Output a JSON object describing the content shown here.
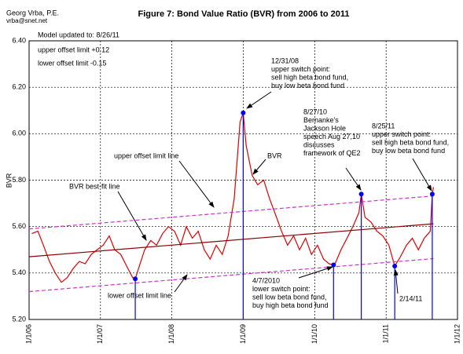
{
  "header": {
    "author": "Georg Vrba, P.E.",
    "email": "vrba@snet.net"
  },
  "chart_data": {
    "type": "line",
    "title": "Figure 7: Bond Value Ratio (BVR) from 2006 to 2011",
    "y_label": "BVR",
    "notes": [
      "Model updated to:   8/26/11",
      "upper offset limit +0.12",
      "lower offset limit  -0.15"
    ],
    "xlim": [
      "2006-01-01",
      "2012-01-01"
    ],
    "xticks": [
      {
        "value": "2006-01-01",
        "label": "1/1/06"
      },
      {
        "value": "2007-01-01",
        "label": "1/1/07"
      },
      {
        "value": "2008-01-01",
        "label": "1/1/08"
      },
      {
        "value": "2009-01-01",
        "label": "1/1/09"
      },
      {
        "value": "2010-01-01",
        "label": "1/1/10"
      },
      {
        "value": "2011-01-01",
        "label": "1/1/11"
      },
      {
        "value": "2012-01-01",
        "label": "1/1/12"
      }
    ],
    "ylim": [
      5.2,
      6.4
    ],
    "yticks": [
      {
        "value": 5.2,
        "label": "5.20"
      },
      {
        "value": 5.4,
        "label": "5.40"
      },
      {
        "value": 5.6,
        "label": "5.60"
      },
      {
        "value": 5.8,
        "label": "5.80"
      },
      {
        "value": 6.0,
        "label": "6.00"
      },
      {
        "value": 6.2,
        "label": "6.20"
      },
      {
        "value": 6.4,
        "label": "6.40"
      }
    ],
    "grid": true,
    "series": [
      {
        "name": "BVR",
        "color": "#e00000",
        "dash": false,
        "x": [
          "2006-01-15",
          "2006-02-15",
          "2006-03-15",
          "2006-04-15",
          "2006-05-15",
          "2006-06-15",
          "2006-07-15",
          "2006-08-15",
          "2006-09-15",
          "2006-10-15",
          "2006-11-15",
          "2006-12-15",
          "2007-01-15",
          "2007-02-15",
          "2007-03-15",
          "2007-04-15",
          "2007-05-15",
          "2007-06-15",
          "2007-06-28",
          "2007-07-15",
          "2007-08-15",
          "2007-09-15",
          "2007-10-15",
          "2007-11-15",
          "2007-12-15",
          "2008-01-15",
          "2008-02-15",
          "2008-03-15",
          "2008-04-15",
          "2008-05-15",
          "2008-06-15",
          "2008-07-15",
          "2008-08-15",
          "2008-09-15",
          "2008-10-15",
          "2008-11-15",
          "2008-12-15",
          "2008-12-31",
          "2009-01-15",
          "2009-02-15",
          "2009-03-15",
          "2009-04-15",
          "2009-05-15",
          "2009-06-15",
          "2009-07-15",
          "2009-08-15",
          "2009-09-15",
          "2009-10-15",
          "2009-11-15",
          "2009-12-15",
          "2010-01-15",
          "2010-02-15",
          "2010-03-15",
          "2010-04-07",
          "2010-04-15",
          "2010-05-15",
          "2010-06-15",
          "2010-07-15",
          "2010-08-15",
          "2010-08-27",
          "2010-09-15",
          "2010-10-15",
          "2010-11-15",
          "2010-12-15",
          "2011-01-15",
          "2011-02-14",
          "2011-03-15",
          "2011-04-15",
          "2011-05-15",
          "2011-06-15",
          "2011-07-15",
          "2011-08-15",
          "2011-08-25",
          "2011-08-31"
        ],
        "values": [
          5.57,
          5.58,
          5.52,
          5.45,
          5.4,
          5.36,
          5.38,
          5.42,
          5.45,
          5.44,
          5.48,
          5.5,
          5.52,
          5.56,
          5.5,
          5.48,
          5.43,
          5.38,
          5.375,
          5.42,
          5.5,
          5.54,
          5.52,
          5.57,
          5.6,
          5.58,
          5.52,
          5.6,
          5.55,
          5.58,
          5.5,
          5.46,
          5.52,
          5.48,
          5.56,
          5.72,
          6.05,
          6.09,
          5.95,
          5.82,
          5.78,
          5.8,
          5.72,
          5.65,
          5.58,
          5.52,
          5.56,
          5.5,
          5.55,
          5.48,
          5.52,
          5.46,
          5.44,
          5.435,
          5.44,
          5.5,
          5.55,
          5.6,
          5.66,
          5.74,
          5.64,
          5.62,
          5.58,
          5.56,
          5.52,
          5.43,
          5.47,
          5.52,
          5.55,
          5.5,
          5.55,
          5.58,
          5.74,
          5.77
        ]
      },
      {
        "name": "BVR best-fit line",
        "color": "#8b0000",
        "dash": false,
        "x": [
          "2006-01-01",
          "2011-08-31"
        ],
        "values": [
          5.47,
          5.612
        ]
      },
      {
        "name": "upper offset limit line",
        "color": "#cc33cc",
        "dash": true,
        "x": [
          "2006-01-01",
          "2011-08-31"
        ],
        "values": [
          5.59,
          5.732
        ]
      },
      {
        "name": "lower offset limit line",
        "color": "#cc33cc",
        "dash": true,
        "x": [
          "2006-01-01",
          "2011-08-31"
        ],
        "values": [
          5.32,
          5.462
        ]
      }
    ],
    "switch_points": {
      "color": "#0000ff",
      "x": [
        "2007-06-28",
        "2008-12-31",
        "2010-04-07",
        "2010-08-27",
        "2011-02-14",
        "2011-08-25"
      ],
      "values": [
        5.375,
        6.09,
        5.435,
        5.74,
        5.43,
        5.74
      ]
    },
    "annotations": [
      {
        "lines": [
          "12/31/08",
          "upper switch point:",
          "sell high beta bond fund,",
          "buy low beta bond fund"
        ]
      },
      {
        "lines": [
          "8/27/10",
          "Bernanke's",
          "Jackson Hole",
          "speech  Aug 27,10",
          "discusses",
          "framework of QE2"
        ]
      },
      {
        "lines": [
          "8/25/11",
          "upper switch point:",
          "sell high beta bond fund,",
          "buy low beta bond fund"
        ]
      },
      {
        "lines": [
          "4/7/2010",
          "lower switch point:",
          "sell low beta bond fund,",
          "buy high beta bond fund"
        ]
      },
      {
        "lines": [
          "2/14/11"
        ]
      }
    ]
  }
}
